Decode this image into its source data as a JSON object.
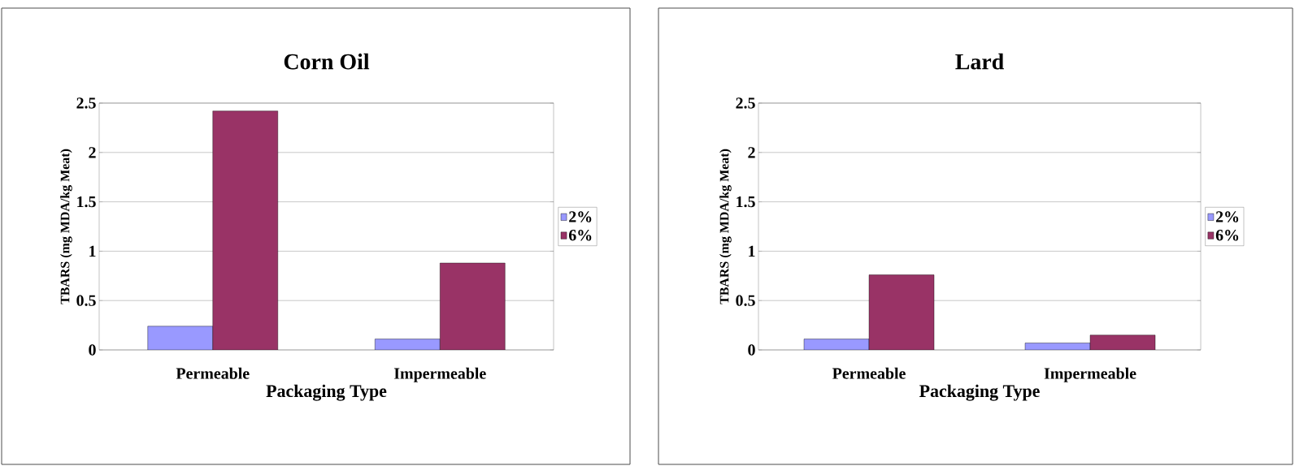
{
  "chart_data": [
    {
      "type": "bar",
      "title": "Corn Oil",
      "xlabel": "Packaging Type",
      "ylabel": "TBARS (mg MDA/kg Meat)",
      "categories": [
        "Permeable",
        "Impermeable"
      ],
      "series": [
        {
          "name": "2%",
          "color": "#9999ff",
          "values": [
            0.24,
            0.11
          ]
        },
        {
          "name": "6%",
          "color": "#993366",
          "values": [
            2.42,
            0.88
          ]
        }
      ],
      "ylim": [
        0,
        2.5
      ],
      "yticks": [
        0,
        0.5,
        1,
        1.5,
        2,
        2.5
      ],
      "grid": "y",
      "legend": "right"
    },
    {
      "type": "bar",
      "title": "Lard",
      "xlabel": "Packaging Type",
      "ylabel": "TBARS (mg MDA/kg Meat)",
      "categories": [
        "Permeable",
        "Impermeable"
      ],
      "series": [
        {
          "name": "2%",
          "color": "#9999ff",
          "values": [
            0.11,
            0.07
          ]
        },
        {
          "name": "6%",
          "color": "#993366",
          "values": [
            0.76,
            0.15
          ]
        }
      ],
      "ylim": [
        0,
        2.5
      ],
      "yticks": [
        0,
        0.5,
        1,
        1.5,
        2,
        2.5
      ],
      "grid": "y",
      "legend": "right"
    }
  ]
}
